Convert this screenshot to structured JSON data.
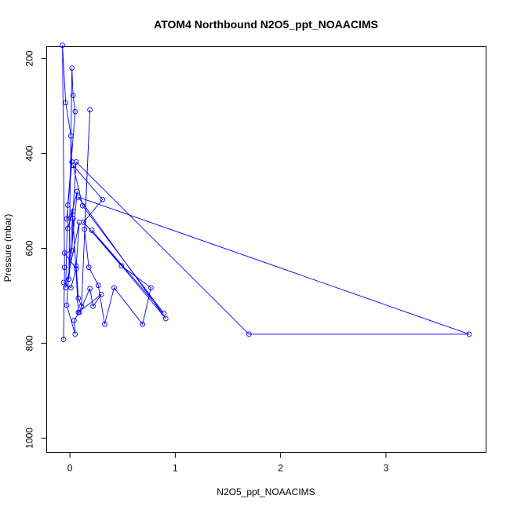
{
  "chart_data": {
    "type": "line",
    "title": "ATOM4 Northbound N2O5_ppt_NOAACIMS",
    "xlabel": "N2O5_ppt_NOAACIMS",
    "ylabel": "Pressure (mbar)",
    "xlim": [
      -0.22,
      3.95
    ],
    "ylim": [
      1030,
      175
    ],
    "y_reversed": true,
    "x_ticks": [
      0,
      1,
      2,
      3
    ],
    "x_tick_labels": [
      "0",
      "1",
      "2",
      "3"
    ],
    "y_ticks": [
      200,
      400,
      600,
      800,
      1000
    ],
    "y_tick_labels": [
      "200",
      "400",
      "600",
      "800",
      "1000"
    ],
    "grid": false,
    "series": [
      {
        "color": "#0000ff",
        "marker": "open-circle",
        "points": [
          [
            -0.06,
            792
          ],
          [
            -0.05,
            640
          ],
          [
            -0.07,
            172
          ],
          [
            -0.04,
            293
          ],
          [
            0.01,
            363
          ],
          [
            0.02,
            418
          ],
          [
            -0.03,
            538
          ],
          [
            0.03,
            522
          ],
          [
            -0.02,
            558
          ],
          [
            0.07,
            480
          ],
          [
            -0.01,
            665
          ],
          [
            0.02,
            220
          ],
          [
            0.03,
            278
          ],
          [
            0.05,
            312
          ],
          [
            -0.02,
            509
          ],
          [
            -0.04,
            683
          ],
          [
            0.09,
            545
          ],
          [
            0.06,
            637
          ],
          [
            0.08,
            705
          ],
          [
            0.11,
            722
          ],
          [
            0.19,
            308
          ],
          [
            0.14,
            560
          ],
          [
            0.18,
            640
          ],
          [
            0.27,
            678
          ],
          [
            0.33,
            760
          ],
          [
            0.42,
            683
          ],
          [
            0.69,
            760
          ],
          [
            0.77,
            683
          ],
          [
            0.49,
            637
          ],
          [
            0.13,
            545
          ],
          [
            0.31,
            497
          ],
          [
            0.03,
            425
          ],
          [
            0.12,
            510
          ],
          [
            0.89,
            737
          ],
          [
            0.21,
            562
          ],
          [
            0.91,
            748
          ],
          [
            0.08,
            492
          ],
          [
            3.79,
            781
          ],
          [
            1.7,
            781
          ],
          [
            0.06,
            418
          ],
          [
            -0.03,
            720
          ],
          [
            0.05,
            781
          ],
          [
            0.04,
            752
          ],
          [
            0.09,
            735
          ],
          [
            0.19,
            685
          ],
          [
            0.22,
            722
          ],
          [
            0.3,
            697
          ],
          [
            0.08,
            735
          ],
          [
            0.03,
            537
          ],
          [
            0.02,
            605
          ],
          [
            -0.05,
            610
          ],
          [
            0.06,
            643
          ],
          [
            0.01,
            683
          ],
          [
            -0.06,
            672
          ]
        ]
      }
    ]
  }
}
